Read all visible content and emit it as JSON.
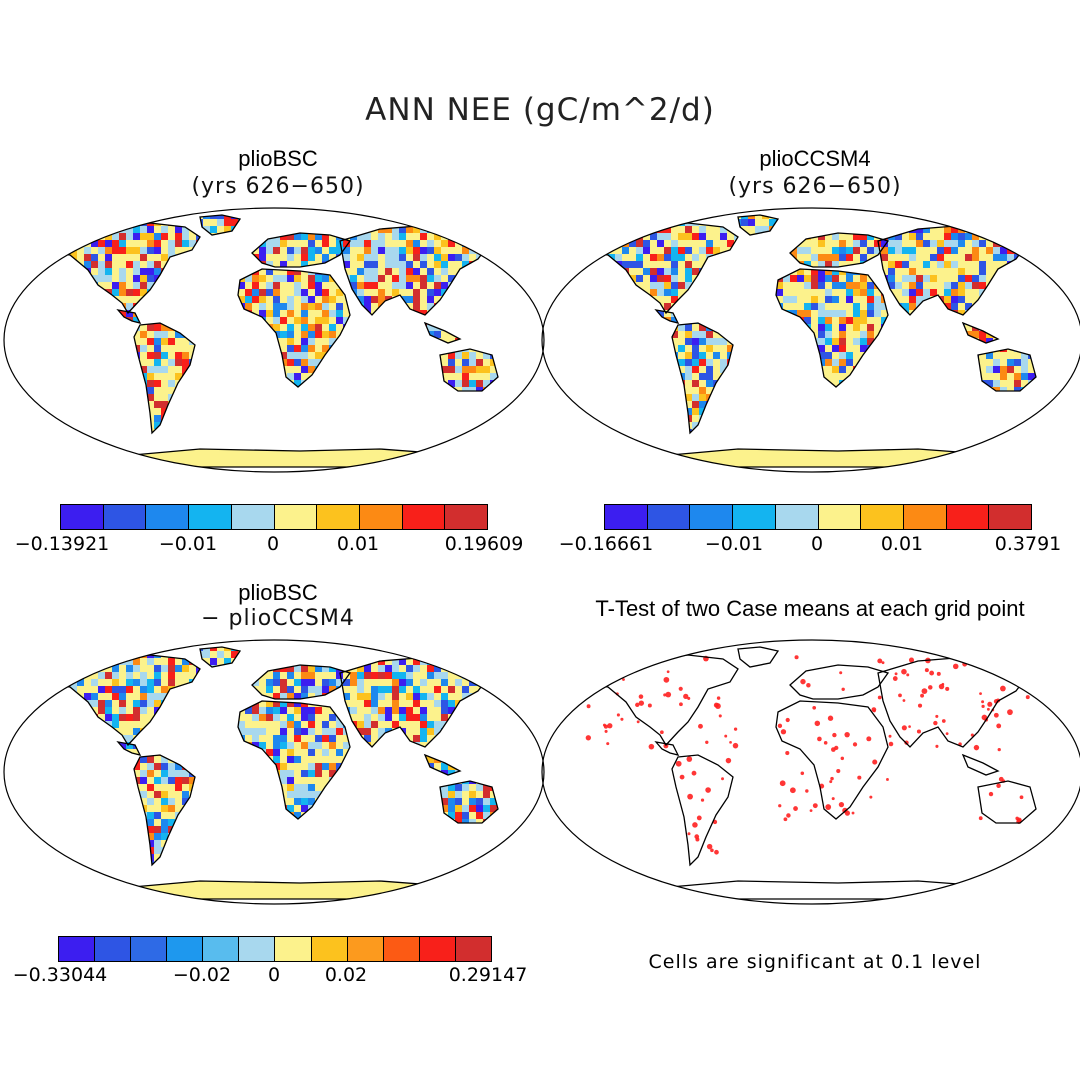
{
  "figure": {
    "title": "ANN NEE (gC/m^2/d)"
  },
  "panels": [
    {
      "id": "top-left",
      "title": "plioBSC",
      "subtitle": "(yrs 626−650)",
      "colorbar": {
        "colors": [
          "#3c1ef0",
          "#2e55e4",
          "#1e88ee",
          "#14b4f0",
          "#a8d8ee",
          "#fcf28c",
          "#fcc21e",
          "#fc8a14",
          "#f8201a",
          "#d22e2e"
        ],
        "tick_labels": [
          "−0.13921",
          "−0.01",
          "0",
          "0.01",
          "0.19609"
        ]
      }
    },
    {
      "id": "top-right",
      "title": "plioCCSM4",
      "subtitle": "(yrs 626−650)",
      "colorbar": {
        "colors": [
          "#3c1ef0",
          "#2e55e4",
          "#1e88ee",
          "#14b4f0",
          "#a8d8ee",
          "#fcf28c",
          "#fcc21e",
          "#fc8a14",
          "#f8201a",
          "#d22e2e"
        ],
        "tick_labels": [
          "−0.16661",
          "−0.01",
          "0",
          "0.01",
          "0.3791"
        ]
      }
    },
    {
      "id": "bottom-left",
      "title": "plioBSC",
      "subtitle": "− plioCCSM4",
      "colorbar": {
        "colors": [
          "#3c1ef0",
          "#2e55e4",
          "#2e6ae6",
          "#1e98ee",
          "#58bcee",
          "#a8d8ee",
          "#fcf28c",
          "#fcc21e",
          "#fc9a1e",
          "#fc5a14",
          "#f8201a",
          "#d22e2e"
        ],
        "tick_labels": [
          "−0.33044",
          "−0.02",
          "0",
          "0.02",
          "0.29147"
        ]
      }
    },
    {
      "id": "bottom-right",
      "title": "T-Test of two Case means at each grid point",
      "note": "Cells are significant at 0.1 level",
      "marker_color": "#ff2020"
    }
  ]
}
